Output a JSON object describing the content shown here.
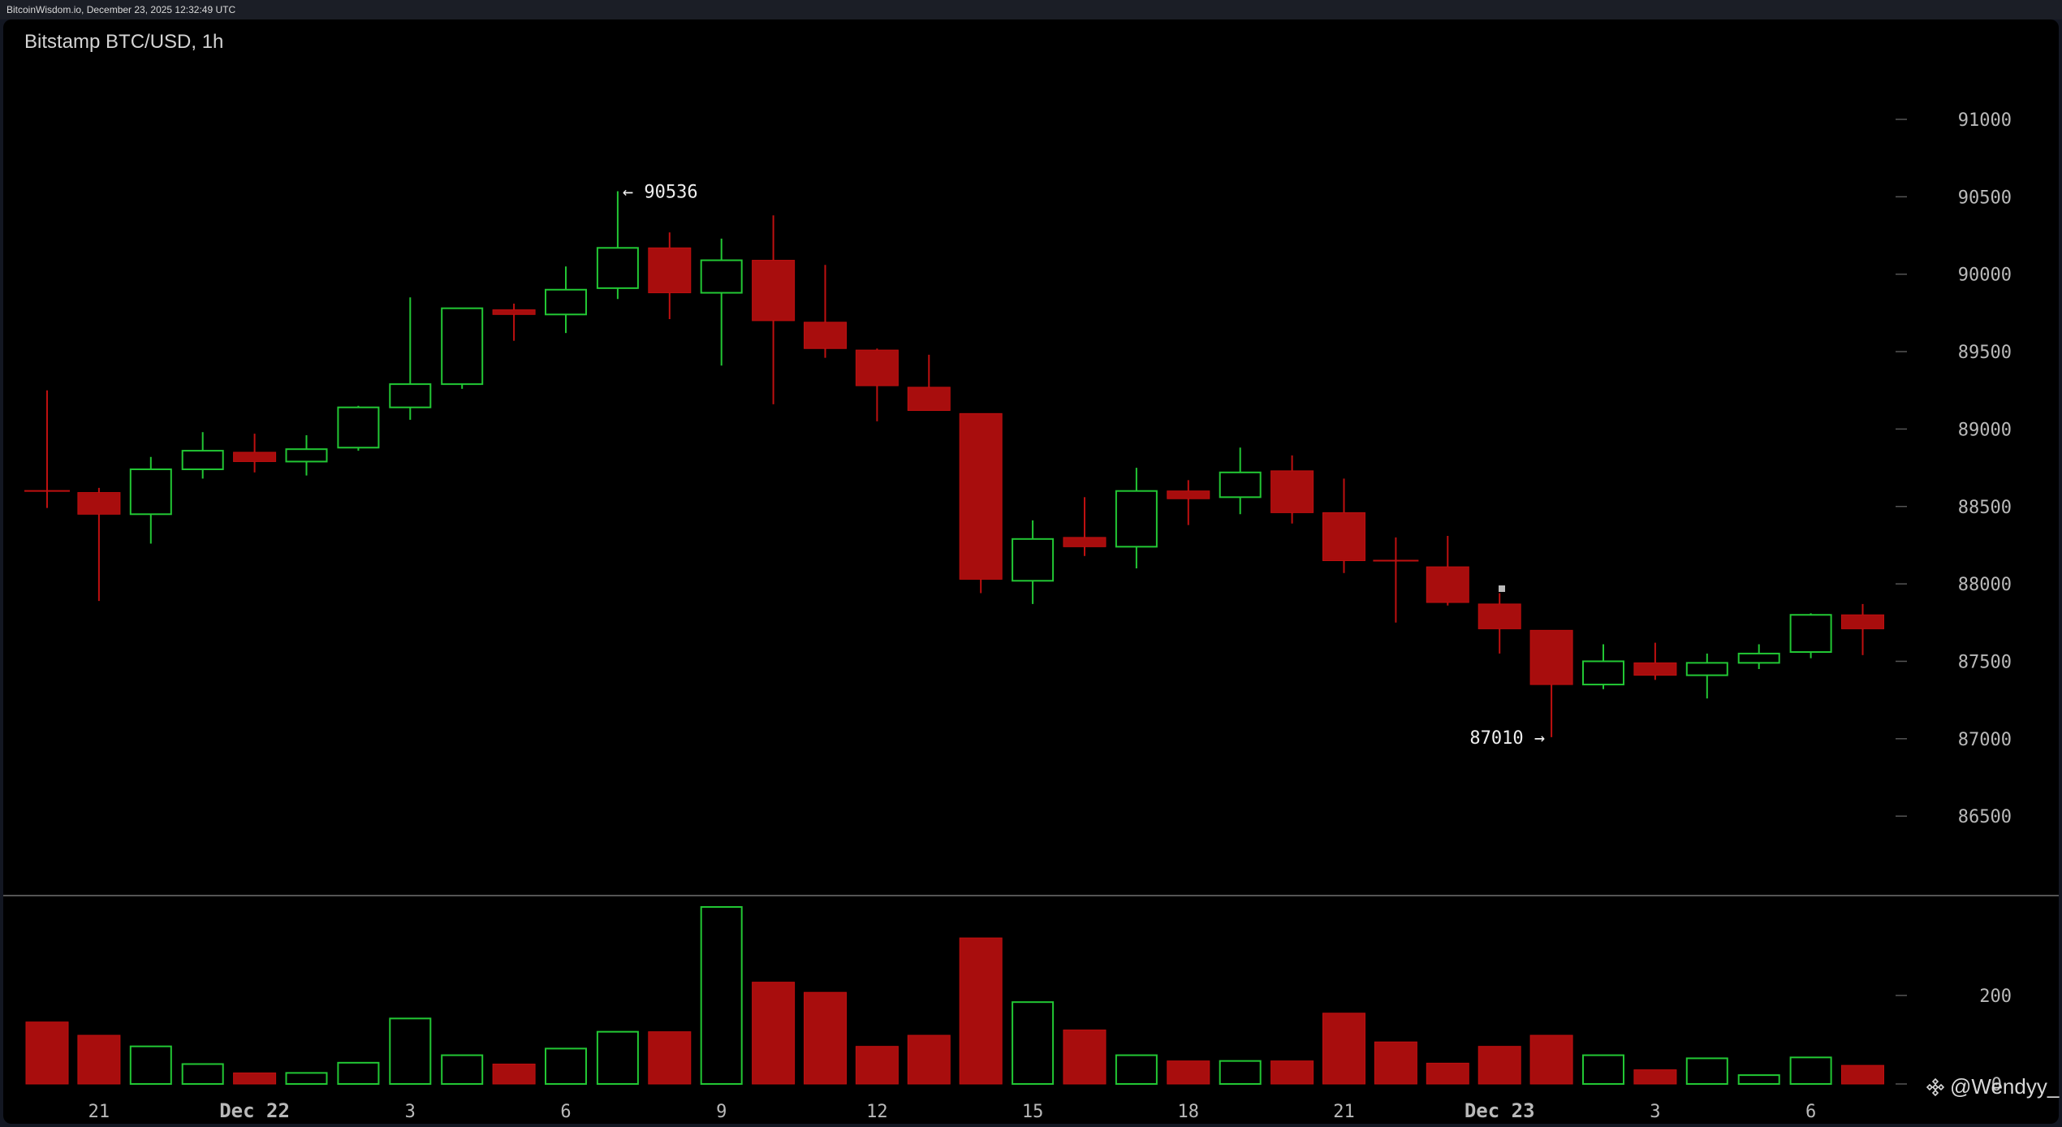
{
  "topbar": {
    "text": "BitcoinWisdom.io, December 23, 2025 12:32:49 UTC"
  },
  "chart": {
    "title": "Bitstamp BTC/USD, 1h"
  },
  "watermark": {
    "text": "@Wendyy_",
    "icon": "binance-diamond-icon"
  },
  "colors": {
    "up": "#22c734",
    "down": "#bf1010",
    "down_fill": "#a80d0d",
    "background": "#000000",
    "grid_text": "#b9b9b9"
  },
  "chart_data": {
    "type": "candlestick",
    "interval": "1h",
    "price_axis": {
      "ticks": [
        86500,
        87000,
        87500,
        88000,
        88500,
        89000,
        89500,
        90000,
        90500,
        91000
      ]
    },
    "volume_axis": {
      "ticks": [
        0,
        200
      ]
    },
    "x_labels": [
      {
        "index": 1,
        "label": "21",
        "date": false
      },
      {
        "index": 4,
        "label": "Dec 22",
        "date": true
      },
      {
        "index": 7,
        "label": "3",
        "date": false
      },
      {
        "index": 10,
        "label": "6",
        "date": false
      },
      {
        "index": 13,
        "label": "9",
        "date": false
      },
      {
        "index": 16,
        "label": "12",
        "date": false
      },
      {
        "index": 19,
        "label": "15",
        "date": false
      },
      {
        "index": 22,
        "label": "18",
        "date": false
      },
      {
        "index": 25,
        "label": "21",
        "date": false
      },
      {
        "index": 28,
        "label": "Dec 23",
        "date": true
      },
      {
        "index": 31,
        "label": "3",
        "date": false
      },
      {
        "index": 34,
        "label": "6",
        "date": false
      }
    ],
    "annotations": {
      "high": "90536",
      "high_prefix": "← ",
      "low": "87010",
      "low_suffix": " →"
    },
    "candles": [
      {
        "o": 88600,
        "h": 89250,
        "l": 88490,
        "c": 88600,
        "v": 140
      },
      {
        "o": 88590,
        "h": 88620,
        "l": 87890,
        "c": 88450,
        "v": 110
      },
      {
        "o": 88450,
        "h": 88820,
        "l": 88260,
        "c": 88740,
        "v": 85
      },
      {
        "o": 88740,
        "h": 88980,
        "l": 88680,
        "c": 88860,
        "v": 45
      },
      {
        "o": 88850,
        "h": 88970,
        "l": 88720,
        "c": 88790,
        "v": 25
      },
      {
        "o": 88790,
        "h": 88960,
        "l": 88700,
        "c": 88870,
        "v": 25
      },
      {
        "o": 88880,
        "h": 89150,
        "l": 88860,
        "c": 89140,
        "v": 48
      },
      {
        "o": 89140,
        "h": 89850,
        "l": 89060,
        "c": 89290,
        "v": 148
      },
      {
        "o": 89290,
        "h": 89780,
        "l": 89260,
        "c": 89780,
        "v": 65
      },
      {
        "o": 89770,
        "h": 89810,
        "l": 89570,
        "c": 89740,
        "v": 45
      },
      {
        "o": 89740,
        "h": 90050,
        "l": 89620,
        "c": 89900,
        "v": 80
      },
      {
        "o": 89910,
        "h": 90536,
        "l": 89840,
        "c": 90170,
        "v": 118
      },
      {
        "o": 90170,
        "h": 90270,
        "l": 89710,
        "c": 89880,
        "v": 118
      },
      {
        "o": 89880,
        "h": 90230,
        "l": 89410,
        "c": 90090,
        "v": 400
      },
      {
        "o": 90090,
        "h": 90380,
        "l": 89160,
        "c": 89700,
        "v": 230
      },
      {
        "o": 89690,
        "h": 90060,
        "l": 89460,
        "c": 89520,
        "v": 207
      },
      {
        "o": 89510,
        "h": 89520,
        "l": 89050,
        "c": 89280,
        "v": 85
      },
      {
        "o": 89270,
        "h": 89480,
        "l": 89120,
        "c": 89120,
        "v": 110
      },
      {
        "o": 89100,
        "h": 89100,
        "l": 87940,
        "c": 88030,
        "v": 330
      },
      {
        "o": 88020,
        "h": 88410,
        "l": 87870,
        "c": 88290,
        "v": 185
      },
      {
        "o": 88300,
        "h": 88560,
        "l": 88180,
        "c": 88240,
        "v": 122
      },
      {
        "o": 88240,
        "h": 88750,
        "l": 88100,
        "c": 88600,
        "v": 65
      },
      {
        "o": 88600,
        "h": 88670,
        "l": 88380,
        "c": 88550,
        "v": 52
      },
      {
        "o": 88560,
        "h": 88880,
        "l": 88450,
        "c": 88720,
        "v": 52
      },
      {
        "o": 88730,
        "h": 88830,
        "l": 88390,
        "c": 88460,
        "v": 52
      },
      {
        "o": 88460,
        "h": 88680,
        "l": 88070,
        "c": 88150,
        "v": 160
      },
      {
        "o": 88150,
        "h": 88300,
        "l": 87750,
        "c": 88150,
        "v": 95
      },
      {
        "o": 88110,
        "h": 88310,
        "l": 87860,
        "c": 87880,
        "v": 47
      },
      {
        "o": 87870,
        "h": 87940,
        "l": 87550,
        "c": 87710,
        "v": 85
      },
      {
        "o": 87700,
        "h": 87700,
        "l": 87010,
        "c": 87350,
        "v": 110
      },
      {
        "o": 87350,
        "h": 87610,
        "l": 87320,
        "c": 87500,
        "v": 65
      },
      {
        "o": 87490,
        "h": 87620,
        "l": 87380,
        "c": 87410,
        "v": 32
      },
      {
        "o": 87410,
        "h": 87550,
        "l": 87260,
        "c": 87490,
        "v": 58
      },
      {
        "o": 87490,
        "h": 87610,
        "l": 87450,
        "c": 87550,
        "v": 20
      },
      {
        "o": 87560,
        "h": 87810,
        "l": 87520,
        "c": 87800,
        "v": 60
      },
      {
        "o": 87800,
        "h": 87870,
        "l": 87540,
        "c": 87710,
        "v": 42
      }
    ]
  }
}
